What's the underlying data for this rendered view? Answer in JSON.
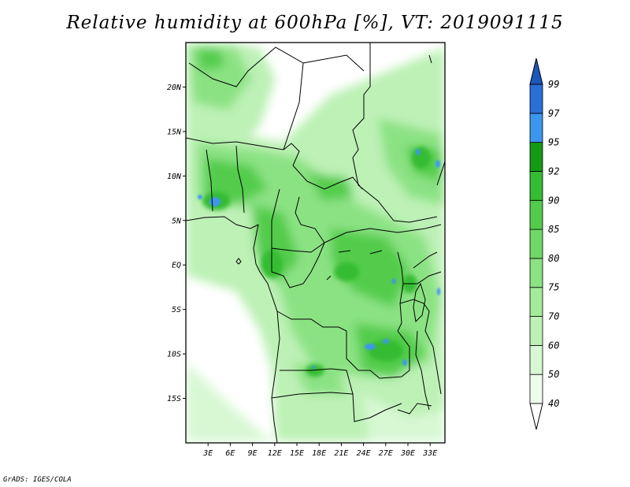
{
  "title": "Relative humidity at 600hPa [%], VT: 2019091115",
  "credit": "GrADS: IGES/COLA",
  "map": {
    "lon_range": [
      0,
      35
    ],
    "lat_range": [
      -20,
      25
    ],
    "lat_ticks": [
      {
        "lat": 20,
        "label": "20N"
      },
      {
        "lat": 15,
        "label": "15N"
      },
      {
        "lat": 10,
        "label": "10N"
      },
      {
        "lat": 5,
        "label": "5N"
      },
      {
        "lat": 0,
        "label": "EQ"
      },
      {
        "lat": -5,
        "label": "5S"
      },
      {
        "lat": -10,
        "label": "10S"
      },
      {
        "lat": -15,
        "label": "15S"
      }
    ],
    "lon_ticks": [
      {
        "lon": 3,
        "label": "3E"
      },
      {
        "lon": 6,
        "label": "6E"
      },
      {
        "lon": 9,
        "label": "9E"
      },
      {
        "lon": 12,
        "label": "12E"
      },
      {
        "lon": 15,
        "label": "15E"
      },
      {
        "lon": 18,
        "label": "18E"
      },
      {
        "lon": 21,
        "label": "21E"
      },
      {
        "lon": 24,
        "label": "24E"
      },
      {
        "lon": 27,
        "label": "27E"
      },
      {
        "lon": 30,
        "label": "30E"
      },
      {
        "lon": 33,
        "label": "33E"
      }
    ]
  },
  "colorbar": {
    "levels": [
      "40",
      "50",
      "60",
      "70",
      "75",
      "80",
      "85",
      "90",
      "92",
      "95",
      "97",
      "99"
    ],
    "colors": [
      "#ffffff",
      "#eefcec",
      "#d8f8d4",
      "#bdf1b6",
      "#a3ea9b",
      "#8be283",
      "#70d868",
      "#52cc4c",
      "#34bc32",
      "#149a14",
      "#3c96ee",
      "#2a6fd6",
      "#1d56bc"
    ]
  }
}
